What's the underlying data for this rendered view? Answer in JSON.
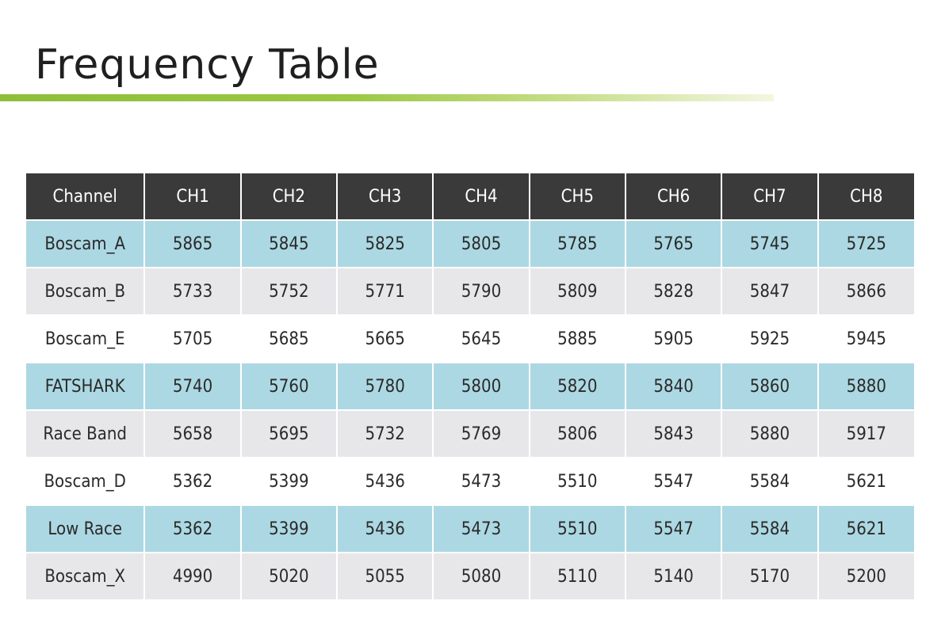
{
  "page": {
    "title": "Frequency Table"
  },
  "table": {
    "header": {
      "first": "Channel",
      "channels": [
        "CH1",
        "CH2",
        "CH3",
        "CH4",
        "CH5",
        "CH6",
        "CH7",
        "CH8"
      ]
    },
    "rows": [
      {
        "band": "Boscam_A",
        "style": "blue",
        "values": [
          "5865",
          "5845",
          "5825",
          "5805",
          "5785",
          "5765",
          "5745",
          "5725"
        ]
      },
      {
        "band": "Boscam_B",
        "style": "grey",
        "values": [
          "5733",
          "5752",
          "5771",
          "5790",
          "5809",
          "5828",
          "5847",
          "5866"
        ]
      },
      {
        "band": "Boscam_E",
        "style": "white",
        "values": [
          "5705",
          "5685",
          "5665",
          "5645",
          "5885",
          "5905",
          "5925",
          "5945"
        ]
      },
      {
        "band": "FATSHARK",
        "style": "blue",
        "values": [
          "5740",
          "5760",
          "5780",
          "5800",
          "5820",
          "5840",
          "5860",
          "5880"
        ]
      },
      {
        "band": "Race Band",
        "style": "grey",
        "values": [
          "5658",
          "5695",
          "5732",
          "5769",
          "5806",
          "5843",
          "5880",
          "5917"
        ]
      },
      {
        "band": "Boscam_D",
        "style": "white",
        "values": [
          "5362",
          "5399",
          "5436",
          "5473",
          "5510",
          "5547",
          "5584",
          "5621"
        ]
      },
      {
        "band": "Low Race",
        "style": "blue",
        "values": [
          "5362",
          "5399",
          "5436",
          "5473",
          "5510",
          "5547",
          "5584",
          "5621"
        ]
      },
      {
        "band": "Boscam_X",
        "style": "grey",
        "values": [
          "4990",
          "5020",
          "5055",
          "5080",
          "5110",
          "5140",
          "5170",
          "5200"
        ]
      }
    ]
  },
  "colors": {
    "header_bg": "#3a3a3a",
    "row_blue": "#acd8e3",
    "row_grey": "#e7e7ea",
    "row_white": "#ffffff",
    "accent_green": "#8dbf3a"
  }
}
